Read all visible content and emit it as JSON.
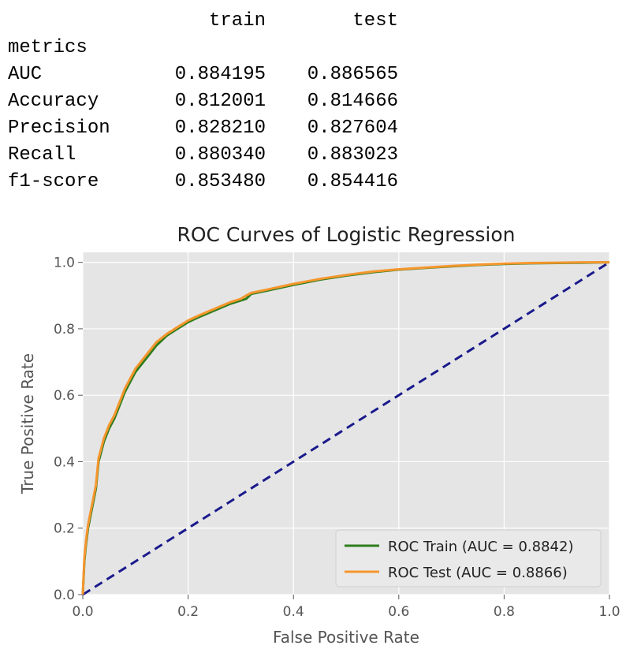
{
  "metrics_table": {
    "columns": [
      "train",
      "test"
    ],
    "index_name": "metrics",
    "rows": [
      {
        "name": "AUC",
        "train": "0.884195",
        "test": "0.886565"
      },
      {
        "name": "Accuracy",
        "train": "0.812001",
        "test": "0.814666"
      },
      {
        "name": "Precision",
        "train": "0.828210",
        "test": "0.827604"
      },
      {
        "name": "Recall",
        "train": "0.880340",
        "test": "0.883023"
      },
      {
        "name": "f1-score",
        "train": "0.853480",
        "test": "0.854416"
      }
    ]
  },
  "chart_data": {
    "type": "line",
    "title": "ROC Curves of Logistic Regression",
    "xlabel": "False Positive Rate",
    "ylabel": "True Positive Rate",
    "xlim": [
      0,
      1
    ],
    "ylim": [
      0,
      1.03
    ],
    "xticks": [
      "0.0",
      "0.2",
      "0.4",
      "0.6",
      "0.8",
      "1.0"
    ],
    "yticks": [
      "0.0",
      "0.2",
      "0.4",
      "0.6",
      "0.8",
      "1.0"
    ],
    "grid": true,
    "legend_position": "lower-right",
    "series": [
      {
        "name": "ROC Train (AUC = 0.8842)",
        "color": "#2e7d1e",
        "x": [
          0,
          0.003,
          0.006,
          0.01,
          0.015,
          0.02,
          0.025,
          0.03,
          0.035,
          0.04,
          0.05,
          0.06,
          0.07,
          0.08,
          0.09,
          0.1,
          0.12,
          0.14,
          0.16,
          0.18,
          0.2,
          0.22,
          0.25,
          0.28,
          0.3,
          0.31,
          0.32,
          0.35,
          0.4,
          0.45,
          0.5,
          0.55,
          0.6,
          0.65,
          0.7,
          0.75,
          0.8,
          0.85,
          0.9,
          0.95,
          1.0
        ],
        "y": [
          0,
          0.1,
          0.15,
          0.2,
          0.24,
          0.28,
          0.32,
          0.4,
          0.43,
          0.46,
          0.5,
          0.53,
          0.57,
          0.61,
          0.64,
          0.67,
          0.71,
          0.75,
          0.78,
          0.8,
          0.82,
          0.835,
          0.855,
          0.875,
          0.885,
          0.89,
          0.905,
          0.915,
          0.932,
          0.948,
          0.96,
          0.97,
          0.978,
          0.983,
          0.988,
          0.992,
          0.995,
          0.997,
          0.998,
          0.999,
          1.0
        ]
      },
      {
        "name": "ROC Test (AUC = 0.8866)",
        "color": "#f5962d",
        "x": [
          0,
          0.003,
          0.006,
          0.01,
          0.015,
          0.02,
          0.025,
          0.03,
          0.035,
          0.04,
          0.05,
          0.06,
          0.07,
          0.08,
          0.09,
          0.1,
          0.12,
          0.14,
          0.16,
          0.18,
          0.2,
          0.22,
          0.25,
          0.28,
          0.3,
          0.31,
          0.32,
          0.35,
          0.4,
          0.45,
          0.5,
          0.55,
          0.6,
          0.65,
          0.7,
          0.75,
          0.8,
          0.85,
          0.9,
          0.95,
          1.0
        ],
        "y": [
          0,
          0.11,
          0.16,
          0.21,
          0.25,
          0.29,
          0.33,
          0.41,
          0.44,
          0.47,
          0.51,
          0.54,
          0.58,
          0.62,
          0.65,
          0.68,
          0.72,
          0.76,
          0.785,
          0.805,
          0.825,
          0.84,
          0.86,
          0.88,
          0.89,
          0.9,
          0.908,
          0.918,
          0.935,
          0.95,
          0.962,
          0.972,
          0.979,
          0.984,
          0.989,
          0.993,
          0.996,
          0.998,
          0.999,
          1.0,
          1.0
        ]
      },
      {
        "name": "",
        "color": "#1a1a8c",
        "dashed": true,
        "x": [
          0,
          1
        ],
        "y": [
          0,
          1
        ]
      }
    ]
  }
}
